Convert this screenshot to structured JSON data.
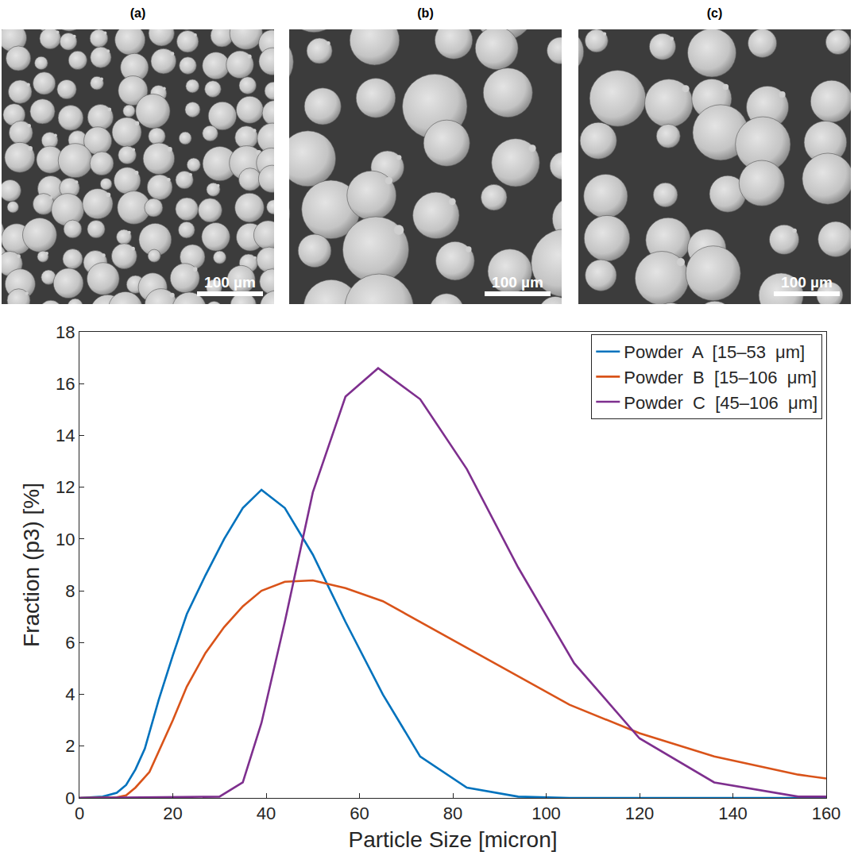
{
  "images": [
    {
      "label": "(a)",
      "scale_bar": "100 µm"
    },
    {
      "label": "(b)",
      "scale_bar": "100 µm"
    },
    {
      "label": "(c)",
      "scale_bar": "100 µm"
    }
  ],
  "chart_data": {
    "type": "line",
    "x_label": "Particle Size [micron]",
    "y_label": "Fraction (p3) [%]",
    "xlim": [
      0,
      160
    ],
    "xticks": [
      0,
      20,
      40,
      60,
      80,
      100,
      120,
      140,
      160
    ],
    "ylim": [
      0,
      18
    ],
    "yticks": [
      0,
      2,
      4,
      6,
      8,
      10,
      12,
      14,
      16,
      18
    ],
    "grid": false,
    "legend": "top-right",
    "series": [
      {
        "name": "Powder  A  [15–53  μm]",
        "color": "#0072BD",
        "x": [
          0,
          5,
          8,
          10,
          12,
          14,
          17,
          20,
          23,
          27,
          31,
          35,
          39,
          44,
          50,
          57,
          65,
          73,
          83,
          94,
          105,
          120,
          140,
          160
        ],
        "values": [
          0,
          0.05,
          0.2,
          0.5,
          1.1,
          1.9,
          3.8,
          5.5,
          7.1,
          8.6,
          10.0,
          11.2,
          11.9,
          11.2,
          9.4,
          6.8,
          4.0,
          1.6,
          0.4,
          0.05,
          0,
          0,
          0,
          0
        ]
      },
      {
        "name": "Powder  B  [15–106  μm]",
        "color": "#D95319",
        "x": [
          0,
          8,
          10,
          12,
          15,
          17,
          20,
          23,
          27,
          31,
          35,
          39,
          44,
          50,
          57,
          65,
          73,
          83,
          94,
          105,
          120,
          136,
          154,
          160
        ],
        "values": [
          0,
          0.02,
          0.1,
          0.4,
          1.0,
          1.8,
          3.0,
          4.3,
          5.6,
          6.6,
          7.4,
          8.0,
          8.35,
          8.4,
          8.1,
          7.6,
          6.8,
          5.8,
          4.7,
          3.6,
          2.5,
          1.6,
          0.9,
          0.75
        ]
      },
      {
        "name": "Powder  C  [45–106  μm]",
        "color": "#7E2F8E",
        "x": [
          0,
          30,
          35,
          39,
          44,
          50,
          57,
          64,
          73,
          83,
          94,
          106,
          120,
          136,
          154,
          160
        ],
        "values": [
          0,
          0.05,
          0.6,
          2.9,
          6.8,
          11.8,
          15.5,
          16.6,
          15.4,
          12.7,
          8.9,
          5.2,
          2.3,
          0.6,
          0.05,
          0.05
        ]
      }
    ]
  }
}
